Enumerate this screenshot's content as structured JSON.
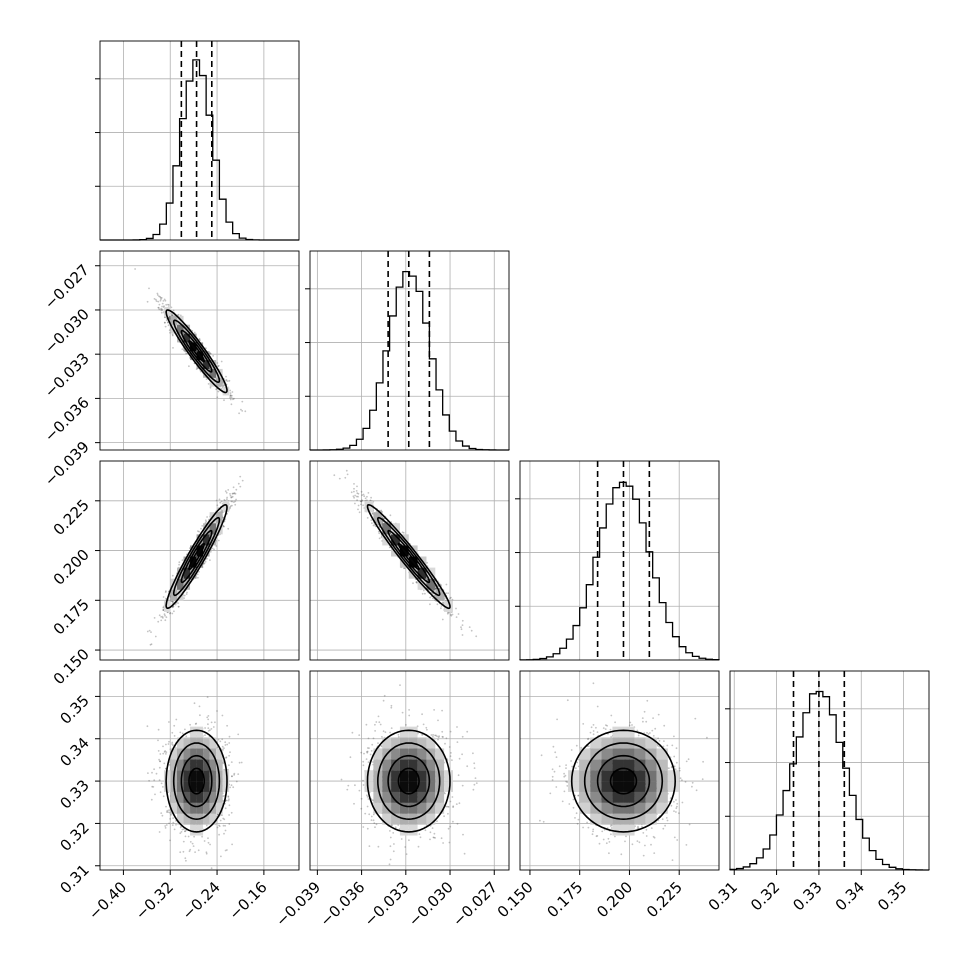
{
  "chart_data": {
    "type": "corner",
    "params": [
      {
        "id": "p1",
        "range": [
          -0.44,
          -0.1
        ],
        "ticks": [
          -0.4,
          -0.32,
          -0.24,
          -0.16
        ],
        "tick_labels": [
          "−0.40",
          "−0.32",
          "−0.24",
          "−0.16"
        ],
        "quantiles": [
          -0.301,
          -0.275,
          -0.249
        ],
        "median": -0.275,
        "sigma": 0.026,
        "hist_max": 0.9
      },
      {
        "id": "p2",
        "range": [
          -0.0395,
          -0.026
        ],
        "ticks": [
          -0.039,
          -0.036,
          -0.033,
          -0.03,
          -0.027
        ],
        "tick_labels": [
          "−0.039",
          "−0.036",
          "−0.033",
          "−0.030",
          "−0.027"
        ],
        "quantiles": [
          -0.0342,
          -0.0328,
          -0.0314
        ],
        "median": -0.0328,
        "sigma": 0.0014,
        "hist_max": 0.9
      },
      {
        "id": "p3",
        "range": [
          0.145,
          0.245
        ],
        "ticks": [
          0.15,
          0.175,
          0.2,
          0.225
        ],
        "tick_labels": [
          "0.150",
          "0.175",
          "0.200",
          "0.225"
        ],
        "quantiles": [
          0.184,
          0.197,
          0.21
        ],
        "median": 0.197,
        "sigma": 0.013,
        "hist_max": 0.9
      },
      {
        "id": "p4",
        "range": [
          0.309,
          0.356
        ],
        "ticks": [
          0.31,
          0.32,
          0.33,
          0.34,
          0.35
        ],
        "tick_labels": [
          "0.31",
          "0.32",
          "0.33",
          "0.34",
          "0.35"
        ],
        "quantiles": [
          0.324,
          0.33,
          0.336
        ],
        "median": 0.33,
        "sigma": 0.006,
        "hist_max": 0.9
      }
    ],
    "correlations": {
      "1-0": -0.95,
      "2-0": 0.95,
      "2-1": -0.97,
      "3-0": 0.0,
      "3-1": 0.0,
      "3-2": 0.0
    },
    "contour_levels_sigma": [
      0.5,
      1.0,
      1.5,
      2.0
    ],
    "grid": true
  }
}
